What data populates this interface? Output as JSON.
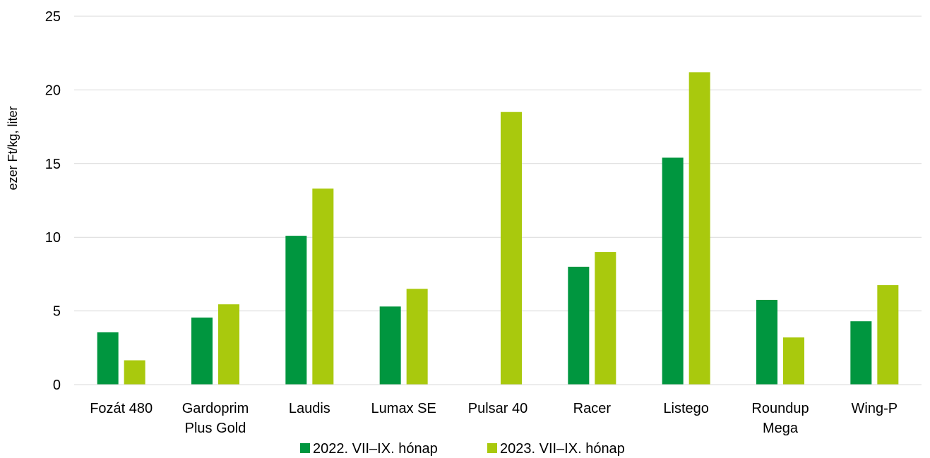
{
  "chart_data": {
    "type": "bar",
    "title": "",
    "xlabel": "",
    "ylabel": "ezer Ft/kg, liter",
    "ylim": [
      0,
      25
    ],
    "yticks": [
      0,
      5,
      10,
      15,
      20,
      25
    ],
    "grid": true,
    "legend_position": "bottom",
    "categories": [
      [
        "Fozát 480"
      ],
      [
        "Gardoprim",
        "Plus Gold"
      ],
      [
        "Laudis"
      ],
      [
        "Lumax SE"
      ],
      [
        "Pulsar 40"
      ],
      [
        "Racer"
      ],
      [
        "Listego"
      ],
      [
        "Roundup",
        "Mega"
      ],
      [
        "Wing-P"
      ]
    ],
    "series": [
      {
        "name": "2022. VII–IX. hónap",
        "color": "#00963f",
        "values": [
          3.55,
          4.55,
          10.1,
          5.3,
          null,
          8.0,
          15.4,
          5.75,
          4.3
        ]
      },
      {
        "name": "2023. VII–IX. hónap",
        "color": "#a9c90d",
        "values": [
          1.65,
          5.45,
          13.3,
          6.5,
          18.5,
          9.0,
          21.2,
          3.2,
          6.75
        ]
      }
    ]
  }
}
